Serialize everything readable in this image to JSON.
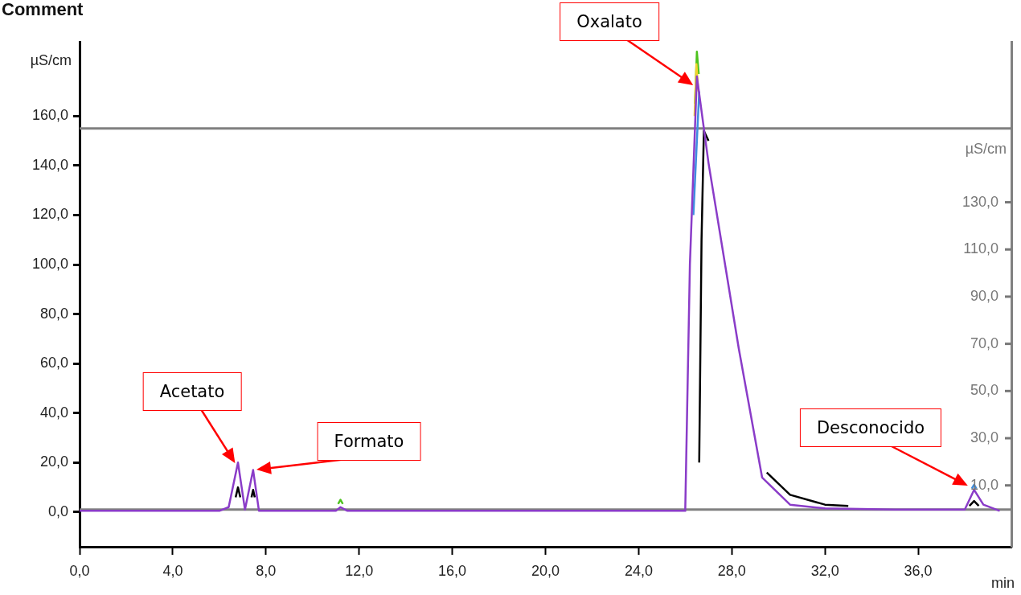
{
  "chart_data": {
    "type": "line",
    "title": "Comment",
    "xlabel": "min",
    "ylabel": "µS/cm",
    "y2label": "µS/cm",
    "xlim": [
      0,
      40
    ],
    "ylim": [
      -14,
      190
    ],
    "y2lim": [
      -16,
      198
    ],
    "xticks": [
      {
        "value": 0,
        "label": "0,0"
      },
      {
        "value": 4,
        "label": "4,0"
      },
      {
        "value": 8,
        "label": "8,0"
      },
      {
        "value": 12,
        "label": "12,0"
      },
      {
        "value": 16,
        "label": "16,0"
      },
      {
        "value": 20,
        "label": "20,0"
      },
      {
        "value": 24,
        "label": "24,0"
      },
      {
        "value": 28,
        "label": "28,0"
      },
      {
        "value": 32,
        "label": "32,0"
      },
      {
        "value": 36,
        "label": "36,0"
      }
    ],
    "yticks": [
      {
        "value": 0,
        "label": "0,0"
      },
      {
        "value": 20,
        "label": "20,0"
      },
      {
        "value": 40,
        "label": "40,0"
      },
      {
        "value": 60,
        "label": "60,0"
      },
      {
        "value": 80,
        "label": "80,0"
      },
      {
        "value": 100,
        "label": "100,0"
      },
      {
        "value": 120,
        "label": "120,0"
      },
      {
        "value": 140,
        "label": "140,0"
      },
      {
        "value": 160,
        "label": "160,0"
      }
    ],
    "y2ticks": [
      {
        "value": 10,
        "label": "10,0"
      },
      {
        "value": 30,
        "label": "30,0"
      },
      {
        "value": 50,
        "label": "50,0"
      },
      {
        "value": 70,
        "label": "70,0"
      },
      {
        "value": 90,
        "label": "90,0"
      },
      {
        "value": 110,
        "label": "110,0"
      },
      {
        "value": 130,
        "label": "130,0"
      }
    ],
    "grid": false,
    "legend": false,
    "marker": "none",
    "line_style": "solid",
    "ref_lines": [
      {
        "axis": "y",
        "value": 1,
        "color": "#808080"
      },
      {
        "axis": "y",
        "value": 155,
        "color": "#808080"
      }
    ],
    "annotations": [
      "Acetato",
      "Formato",
      "Oxalato",
      "Desconocido"
    ],
    "series": [
      {
        "color": "#000000",
        "x": [
          6.7,
          6.8,
          6.9,
          7.0,
          7.38,
          7.45,
          7.52,
          16.0,
          26.6,
          26.7,
          26.8,
          27.0,
          28.0,
          29.5,
          30.5,
          32,
          33,
          35.0,
          38.2,
          38.4,
          38.6
        ],
        "values": [
          6,
          10,
          6,
          null,
          6,
          9,
          6,
          null,
          20,
          110,
          154,
          150,
          null,
          16,
          7,
          3,
          2.5,
          null,
          2.5,
          4.5,
          2.5
        ]
      },
      {
        "color": "#4cc21c",
        "x": [
          11.1,
          11.2,
          11.3,
          20,
          26.42,
          26.5,
          26.58
        ],
        "values": [
          3.3,
          5,
          3.3,
          null,
          165,
          186,
          177
        ]
      },
      {
        "color": "#f2d22e",
        "x": [
          26.4,
          26.48,
          26.56
        ],
        "values": [
          160,
          181,
          170
        ]
      },
      {
        "color": "#3e8ee0",
        "x": [
          26.35,
          26.6,
          30,
          38.3,
          38.4,
          38.5
        ],
        "values": [
          120,
          170,
          null,
          9.5,
          11,
          9.5
        ]
      },
      {
        "color": "#8a3cc8",
        "x": [
          0,
          6,
          6.4,
          6.8,
          7.1,
          7.45,
          7.7,
          11,
          11.2,
          11.5,
          26.0,
          26.2,
          26.5,
          27.0,
          28.3,
          29.3,
          30.5,
          32,
          35,
          38,
          38.4,
          38.8,
          39.5
        ],
        "values": [
          0.5,
          0.5,
          2,
          20,
          1,
          17,
          0.5,
          0.5,
          2,
          0.5,
          0.5,
          100,
          176,
          141,
          66,
          14,
          3,
          1.5,
          1,
          1,
          9,
          3,
          0.5
        ]
      }
    ]
  }
}
